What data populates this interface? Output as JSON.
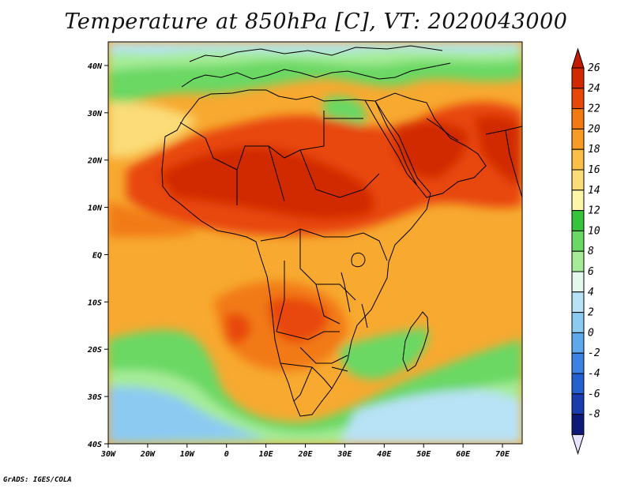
{
  "title": "Temperature at 850hPa [C], VT: 2020043000",
  "credit": "GrADS: IGES/COLA",
  "map": {
    "projection": "latlon",
    "lon_range": [
      -30,
      75
    ],
    "lat_range": [
      -40,
      45
    ],
    "lon_ticks": [
      {
        "value": -30,
        "label": "30W"
      },
      {
        "value": -20,
        "label": "20W"
      },
      {
        "value": -10,
        "label": "10W"
      },
      {
        "value": 0,
        "label": "0"
      },
      {
        "value": 10,
        "label": "10E"
      },
      {
        "value": 20,
        "label": "20E"
      },
      {
        "value": 30,
        "label": "30E"
      },
      {
        "value": 40,
        "label": "40E"
      },
      {
        "value": 50,
        "label": "50E"
      },
      {
        "value": 60,
        "label": "60E"
      },
      {
        "value": 70,
        "label": "70E"
      }
    ],
    "lat_ticks": [
      {
        "value": 40,
        "label": "40N"
      },
      {
        "value": 30,
        "label": "30N"
      },
      {
        "value": 20,
        "label": "20N"
      },
      {
        "value": 10,
        "label": "10N"
      },
      {
        "value": 0,
        "label": "EQ"
      },
      {
        "value": -10,
        "label": "10S"
      },
      {
        "value": -20,
        "label": "20S"
      },
      {
        "value": -30,
        "label": "30S"
      },
      {
        "value": -40,
        "label": "40S"
      }
    ]
  },
  "colorbar": {
    "levels": [
      {
        "label": "26",
        "color": "#d22a00"
      },
      {
        "label": "24",
        "color": "#e8470a"
      },
      {
        "label": "22",
        "color": "#f27a12"
      },
      {
        "label": "20",
        "color": "#f79b26"
      },
      {
        "label": "18",
        "color": "#fbbe46"
      },
      {
        "label": "16",
        "color": "#fbdc78"
      },
      {
        "label": "14",
        "color": "#fdf6a8"
      },
      {
        "label": "12",
        "color": "#36c43c"
      },
      {
        "label": "10",
        "color": "#6ad864"
      },
      {
        "label": "8",
        "color": "#a6ec98"
      },
      {
        "label": "6",
        "color": "#e4f8ee"
      },
      {
        "label": "4",
        "color": "#b8e2f6"
      },
      {
        "label": "2",
        "color": "#8ccaf2"
      },
      {
        "label": "0",
        "color": "#5ea8ec"
      },
      {
        "label": "-2",
        "color": "#3b82e2"
      },
      {
        "label": "-4",
        "color": "#2360d0"
      },
      {
        "label": "-6",
        "color": "#1a3cae"
      },
      {
        "label": "-8",
        "color": "#0e1a78"
      }
    ],
    "top_arrow_color": "#c41a00",
    "bottom_arrow_color": "#e8e4ff"
  }
}
